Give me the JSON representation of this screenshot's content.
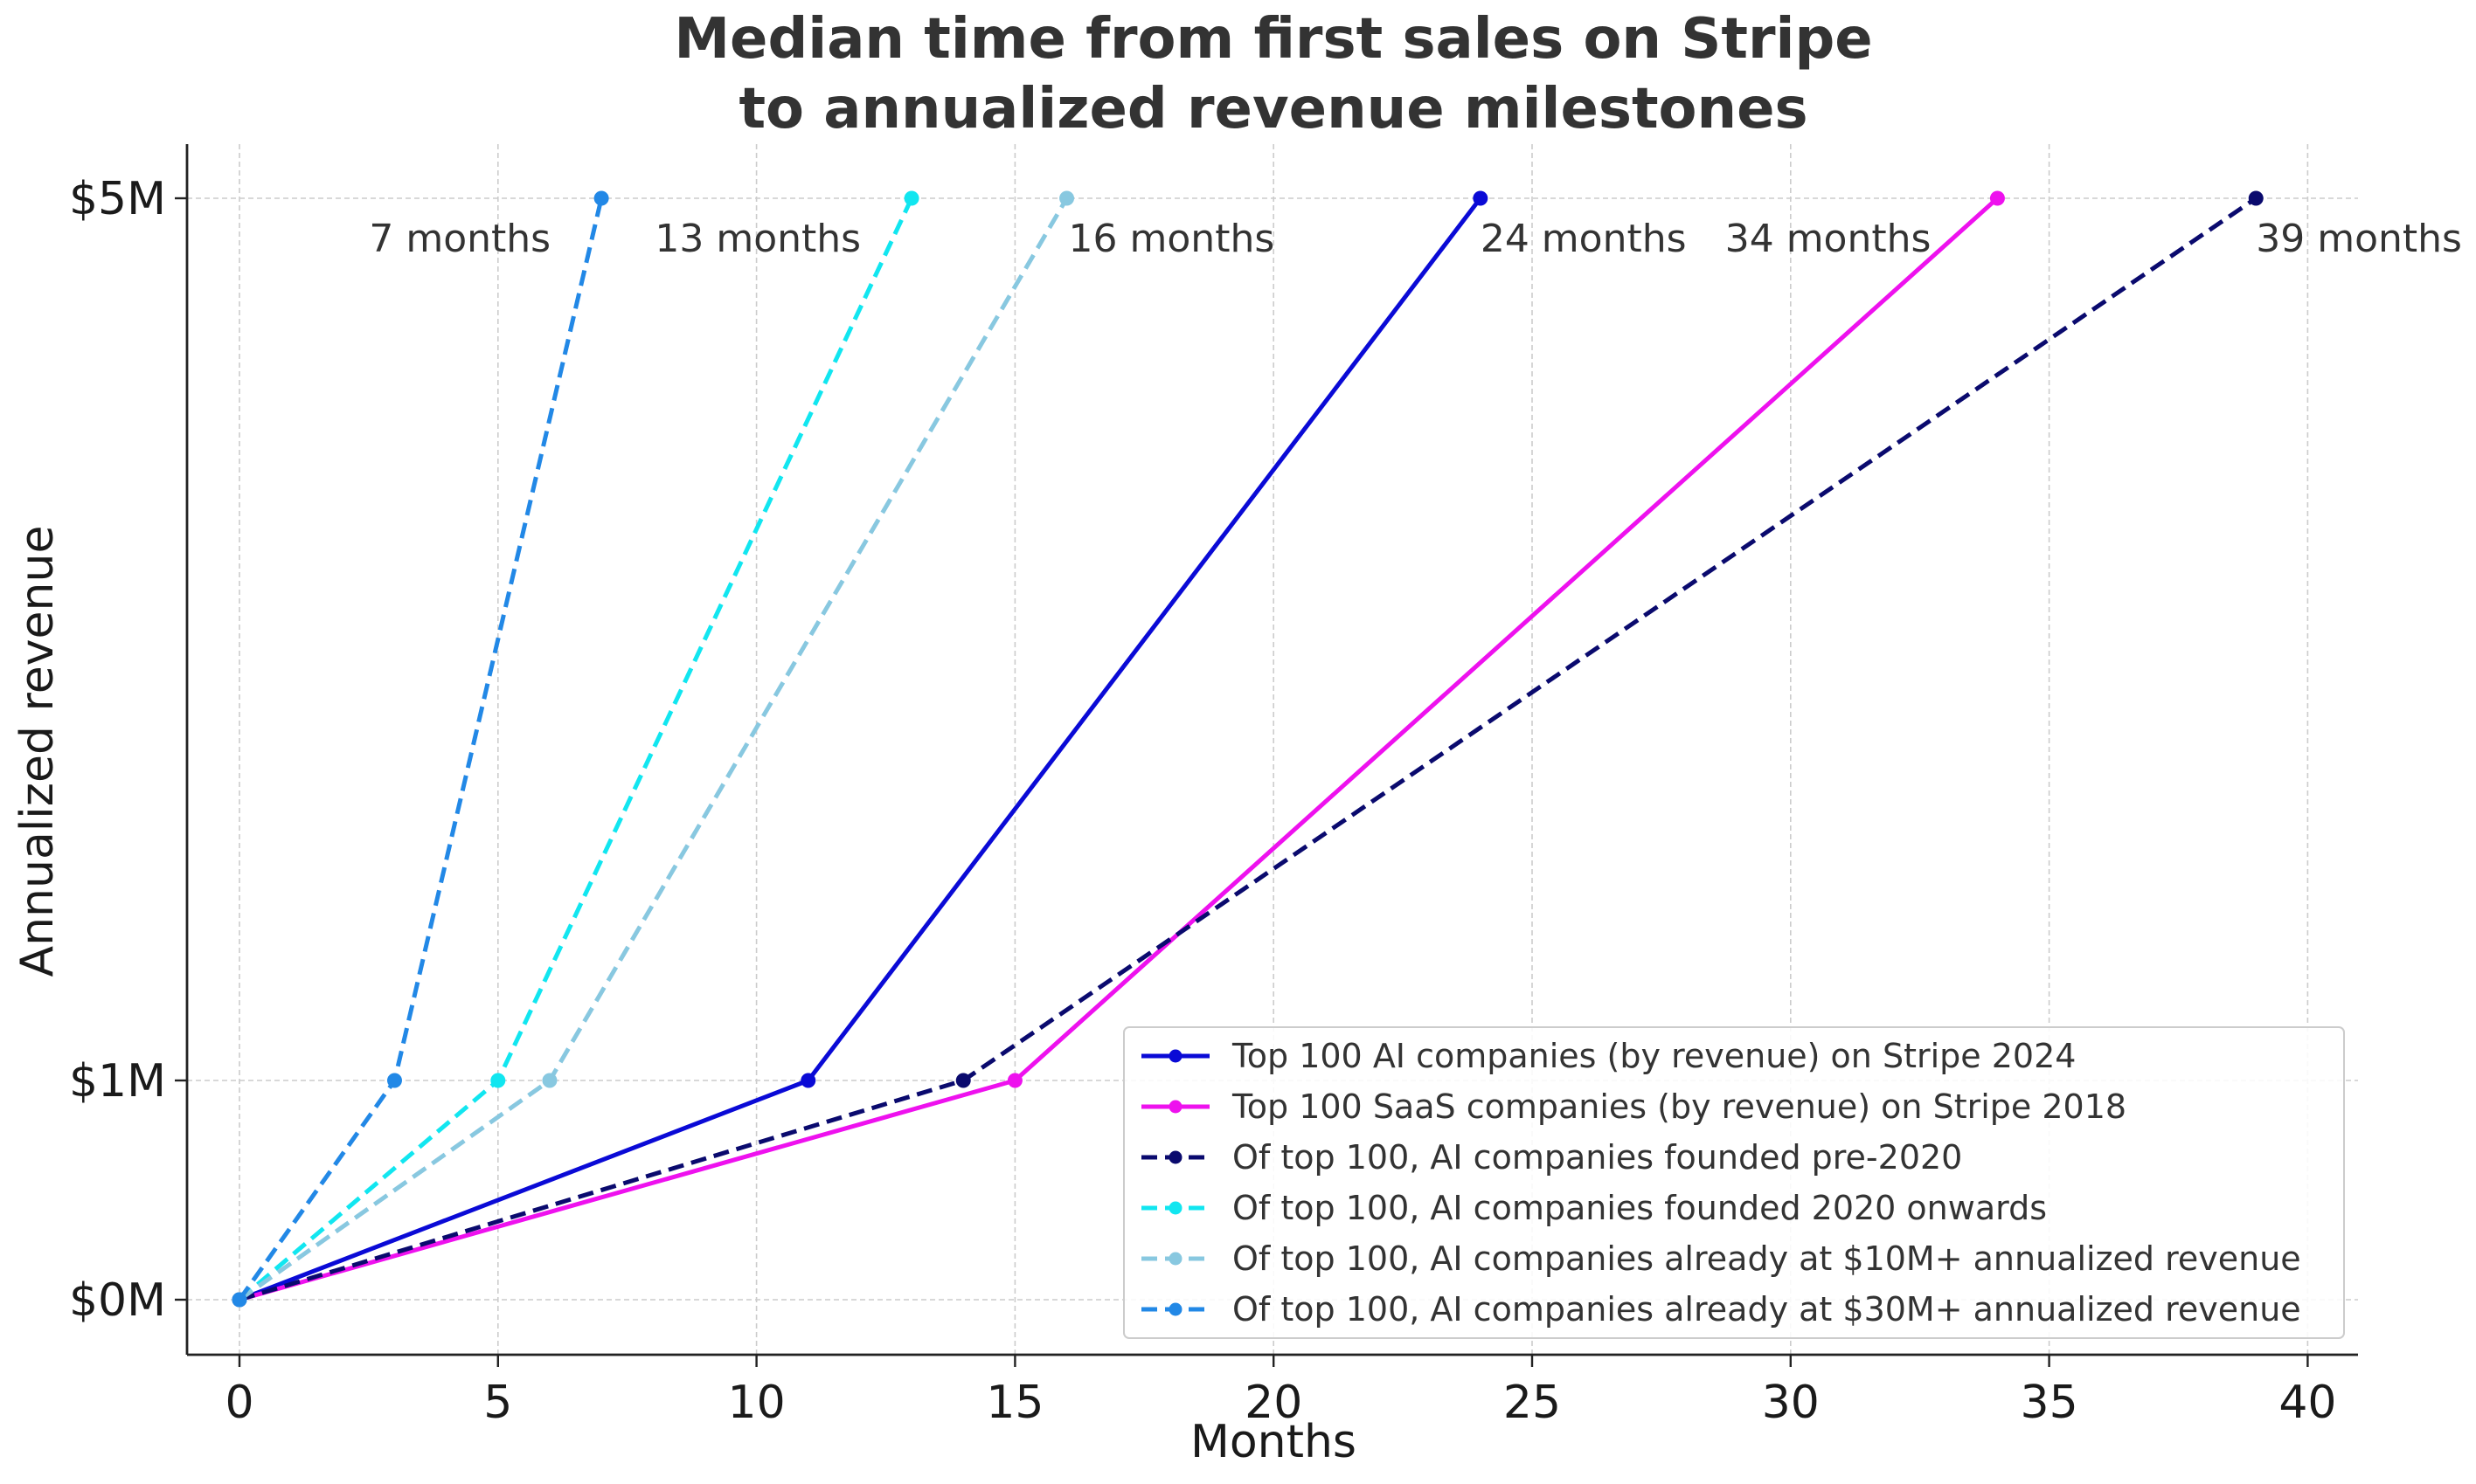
{
  "chart_data": {
    "type": "line",
    "title_line1": "Median time from first sales on Stripe",
    "title_line2": "to annualized revenue milestones",
    "xlabel": "Months",
    "ylabel": "Annualized revenue",
    "xlim": [
      -1,
      41
    ],
    "x_ticks": [
      0,
      5,
      10,
      15,
      20,
      25,
      30,
      35,
      40
    ],
    "y_tick_labels": [
      "$0M",
      "$1M",
      "$5M"
    ],
    "y_tick_values": [
      0,
      1,
      5
    ],
    "y_note": "category-spaced milestones: $0M, $1M, $5M",
    "grid": true,
    "legend_position": "lower-right",
    "series": [
      {
        "name": "Top 100 AI companies (by revenue) on Stripe 2024",
        "color": "#0a0ad6",
        "dashed": false,
        "points": [
          [
            0,
            0
          ],
          [
            11,
            1
          ],
          [
            24,
            5
          ]
        ],
        "annotation": "24 months"
      },
      {
        "name": "Top 100 SaaS companies (by revenue) on Stripe 2018",
        "color": "#ee11ee",
        "dashed": false,
        "points": [
          [
            0,
            0
          ],
          [
            15,
            1
          ],
          [
            34,
            5
          ]
        ],
        "annotation": "34 months"
      },
      {
        "name": "Of top 100, AI companies founded pre-2020",
        "color": "#0a0a6e",
        "dashed": true,
        "points": [
          [
            0,
            0
          ],
          [
            14,
            1
          ],
          [
            39,
            5
          ]
        ],
        "annotation": "39 months"
      },
      {
        "name": "Of top 100, AI companies founded 2020 onwards",
        "color": "#11e6f0",
        "dashed": true,
        "points": [
          [
            0,
            0
          ],
          [
            5,
            1
          ],
          [
            13,
            5
          ]
        ],
        "annotation": "13 months"
      },
      {
        "name": "Of top 100, AI companies already at $10M+ annualized revenue",
        "color": "#88c8e0",
        "dashed": true,
        "points": [
          [
            0,
            0
          ],
          [
            6,
            1
          ],
          [
            16,
            5
          ]
        ],
        "annotation": "16 months"
      },
      {
        "name": "Of top 100, AI companies already at $30M+ annualized revenue",
        "color": "#2288e6",
        "dashed": true,
        "points": [
          [
            0,
            0
          ],
          [
            3,
            1
          ],
          [
            7,
            5
          ]
        ],
        "annotation": "7 months"
      }
    ]
  }
}
